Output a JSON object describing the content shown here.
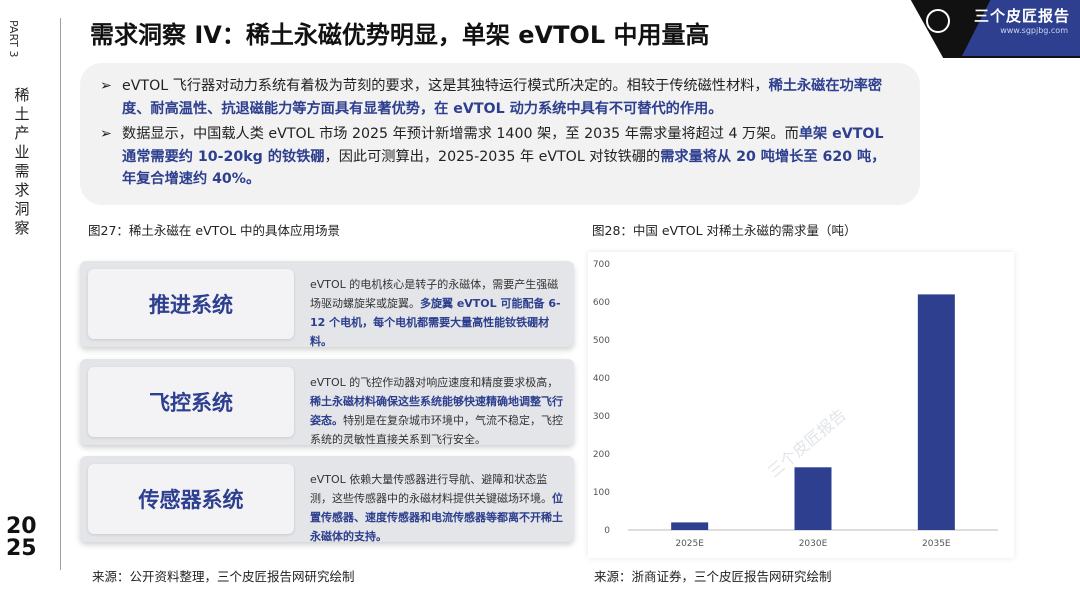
{
  "rail": {
    "part": "PART 3",
    "section_chars": [
      "稀",
      "土",
      "产",
      "业",
      "需",
      "求",
      "洞",
      "察"
    ],
    "year_top": "20",
    "year_bottom": "25"
  },
  "logo": {
    "name": "三个皮匠报告",
    "url": "www.sgpjbg.com"
  },
  "title": "需求洞察 IV：稀土永磁优势明显，单架 eVTOL 中用量高",
  "bullets": [
    {
      "arrow": "➢",
      "text_1": "eVTOL 飞行器对动力系统有着极为苛刻的要求，这是其独特运行模式所决定的。相较于传统磁性材料，",
      "hl_1": "稀土永磁在功率密度、耐高温性、抗退磁能力等方面具有显著优势，在 eVTOL 动力系统中具有不可替代的作用。"
    },
    {
      "arrow": "➢",
      "text_1": "数据显示，中国载人类 eVTOL 市场 2025 年预计新增需求 1400 架，至 2035 年需求量将超过 4 万架。而",
      "hl_1": "单架 eVTOL 通常需要约 10-20kg 的钕铁硼",
      "text_2": "，因此可测算出，2025-2035 年 eVTOL 对钕铁硼的",
      "hl_2": "需求量将从 20 吨增长至 620 吨，年复合增速约 40%。"
    }
  ],
  "figure27": {
    "caption": "图27：稀土永磁在 eVTOL 中的具体应用场景",
    "cards": [
      {
        "label": "推进系统",
        "text": "eVTOL 的电机核心是转子的永磁体，需要产生强磁场驱动螺旋桨或旋翼。",
        "hl": "多旋翼 eVTOL 可能配备 6-12 个电机，每个电机都需要大量高性能钕铁硼材料。",
        "tail": ""
      },
      {
        "label": "飞控系统",
        "text": "eVTOL 的飞控作动器对响应速度和精度要求极高，",
        "hl": "稀土永磁材料确保这些系统能够快速精确地调整飞行姿态。",
        "tail": "特别是在复杂城市环境中，气流不稳定，飞控系统的灵敏性直接关系到飞行安全。"
      },
      {
        "label": "传感器系统",
        "text": "eVTOL 依赖大量传感器进行导航、避障和状态监测，这些传感器中的永磁材料提供关键磁场环境。",
        "hl": "位置传感器、速度传感器和电流传感器等都离不开稀土永磁体的支持。",
        "tail": ""
      }
    ],
    "source": "来源：公开资料整理，三个皮匠报告网研究绘制"
  },
  "figure28": {
    "caption": "图28：中国 eVTOL 对稀土永磁的需求量（吨）",
    "source": "来源：浙商证券，三个皮匠报告网研究绘制",
    "watermark": "三个皮匠报告"
  },
  "chart_data": {
    "type": "bar",
    "categories": [
      "2025E",
      "2030E",
      "2035E"
    ],
    "values": [
      20,
      165,
      620
    ],
    "ylim": [
      0,
      700
    ],
    "yticks": [
      0,
      100,
      200,
      300,
      400,
      500,
      600,
      700
    ],
    "bar_color": "#2d3f8e",
    "grid": false,
    "legend": "none"
  },
  "colors": {
    "accent": "#2d3f8e",
    "panel": "#f2f2f2",
    "card": "#e4e5e8"
  }
}
